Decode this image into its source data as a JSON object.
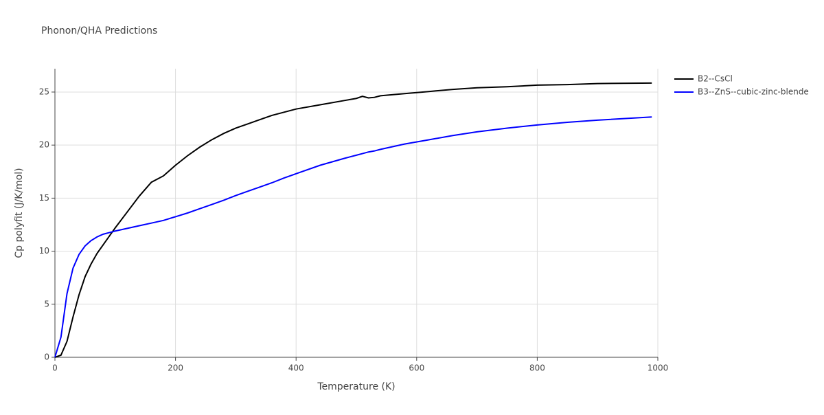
{
  "chart_data": {
    "type": "line",
    "title": "Phonon/QHA Predictions",
    "x_label": "Temperature (K)",
    "y_label": "Cp polyfit (J/K/mol)",
    "x": [
      0,
      10,
      20,
      30,
      40,
      50,
      60,
      70,
      80,
      90,
      100,
      120,
      140,
      160,
      180,
      200,
      220,
      240,
      260,
      280,
      300,
      320,
      340,
      360,
      380,
      400,
      440,
      480,
      500,
      510,
      520,
      530,
      540,
      580,
      620,
      660,
      700,
      750,
      800,
      850,
      900,
      990
    ],
    "series": [
      {
        "name": "B2--CsCl",
        "color": "#000000",
        "values": [
          0,
          0.2,
          1.5,
          3.8,
          5.9,
          7.6,
          8.8,
          9.8,
          10.6,
          11.4,
          12.2,
          13.7,
          15.2,
          16.5,
          17.1,
          18.1,
          19.0,
          19.8,
          20.5,
          21.1,
          21.6,
          22.0,
          22.4,
          22.8,
          23.1,
          23.4,
          23.8,
          24.2,
          24.4,
          24.6,
          24.45,
          24.5,
          24.65,
          24.85,
          25.05,
          25.25,
          25.4,
          25.5,
          25.65,
          25.7,
          25.8,
          25.85
        ]
      },
      {
        "name": "B3--ZnS--cubic-zinc-blende",
        "color": "#0000ff",
        "values": [
          0,
          1.9,
          6.0,
          8.4,
          9.7,
          10.5,
          11.0,
          11.35,
          11.6,
          11.75,
          11.9,
          12.15,
          12.4,
          12.65,
          12.9,
          13.25,
          13.6,
          14.0,
          14.4,
          14.8,
          15.25,
          15.65,
          16.05,
          16.45,
          16.9,
          17.3,
          18.1,
          18.75,
          19.05,
          19.2,
          19.35,
          19.45,
          19.6,
          20.1,
          20.5,
          20.9,
          21.25,
          21.6,
          21.9,
          22.15,
          22.35,
          22.65
        ]
      }
    ],
    "xlim": [
      0,
      1000
    ],
    "xticks": [
      0,
      200,
      400,
      600,
      800,
      1000
    ],
    "ylim": [
      0,
      27.2
    ],
    "yticks": [
      0,
      5,
      10,
      15,
      20,
      25
    ],
    "grid": true,
    "legend": "right"
  }
}
